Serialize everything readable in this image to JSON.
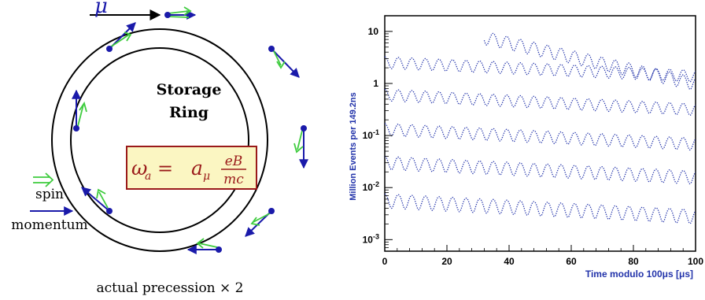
{
  "ring_diagram": {
    "muon_label": "μ",
    "title_line1": "Storage",
    "title_line2": "Ring",
    "formula": {
      "omega": "ω",
      "omega_sub": "a",
      "equals": "=",
      "a": "a",
      "a_sub": "μ",
      "numerator": "eB",
      "denominator": "mc"
    },
    "legend": {
      "spin_label": "spin",
      "momentum_label": "momentum"
    },
    "caption": "actual precession × 2",
    "colors": {
      "spin": "#3fcc3f",
      "momentum": "#1a1aaa",
      "formula_text": "#9a1a1a",
      "formula_box": "#fbf6c2"
    }
  },
  "chart_data": {
    "type": "line",
    "xlabel": "Time modulo 100μs [μs]",
    "ylabel": "Million Events per 149.2ns",
    "x_ticks": [
      0,
      20,
      40,
      60,
      80,
      100
    ],
    "xlim": [
      0,
      100
    ],
    "ylim": [
      0.0006,
      20
    ],
    "log_y": true,
    "y_ticks": [
      {
        "value": 0.001,
        "base": "10",
        "exp": "-3"
      },
      {
        "value": 0.01,
        "base": "10",
        "exp": "-2"
      },
      {
        "value": 0.1,
        "base": "10",
        "exp": "-1"
      },
      {
        "value": 1,
        "base": "1",
        "exp": ""
      },
      {
        "value": 10,
        "base": "10",
        "exp": ""
      }
    ],
    "series_color": "#2233aa",
    "series": [
      {
        "x_start": 32,
        "x_end": 100,
        "y_mean": 7.8,
        "mod": 0.28,
        "decay": 0.03
      },
      {
        "x_start": 0,
        "x_end": 100,
        "y_mean": 2.6,
        "mod": 0.25,
        "decay": 0.006
      },
      {
        "x_start": 0,
        "x_end": 100,
        "y_mean": 0.62,
        "mod": 0.25,
        "decay": 0.0065
      },
      {
        "x_start": 0,
        "x_end": 100,
        "y_mean": 0.135,
        "mod": 0.26,
        "decay": 0.0065
      },
      {
        "x_start": 0,
        "x_end": 100,
        "y_mean": 0.031,
        "mod": 0.28,
        "decay": 0.0065
      },
      {
        "x_start": 0,
        "x_end": 100,
        "y_mean": 0.0058,
        "mod": 0.3,
        "decay": 0.007
      }
    ],
    "period": 4.365
  }
}
